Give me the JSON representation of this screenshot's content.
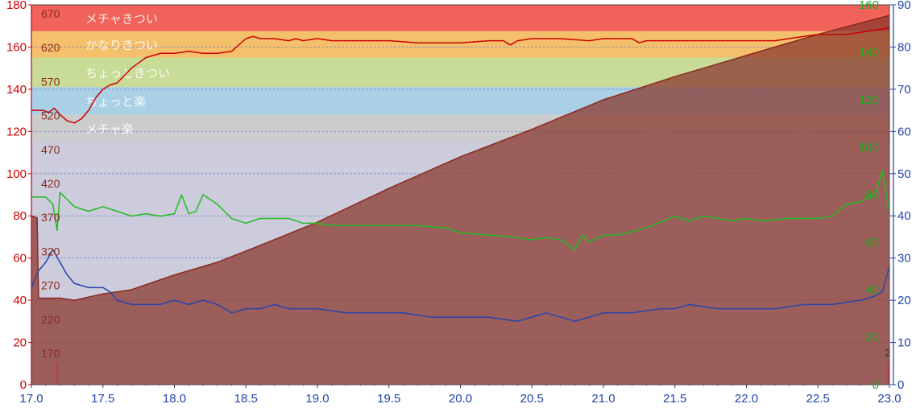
{
  "chart_data": {
    "type": "line",
    "x_ticks": [
      "17.0",
      "17.5",
      "18.0",
      "18.5",
      "19.0",
      "19.5",
      "20.0",
      "20.5",
      "21.0",
      "21.5",
      "22.0",
      "22.5",
      "23.0"
    ],
    "xlim": [
      17.0,
      23.0
    ],
    "axes": {
      "left_red": {
        "range": [
          0,
          180
        ],
        "ticks": [
          "0",
          "20",
          "40",
          "60",
          "80",
          "100",
          "120",
          "140",
          "160",
          "180"
        ],
        "color": "#cc0000"
      },
      "inner_dark": {
        "ticks": [
          "170",
          "220",
          "270",
          "320",
          "370",
          "420",
          "470",
          "520",
          "570",
          "620",
          "670"
        ],
        "color": "#8b2a1e"
      },
      "right_green": {
        "range": [
          0,
          160
        ],
        "ticks": [
          "0",
          "20",
          "40",
          "60",
          "80",
          "100",
          "120",
          "140",
          "160"
        ],
        "color": "#22aa22"
      },
      "right_blue": {
        "range": [
          0,
          90
        ],
        "ticks": [
          "0",
          "10",
          "20",
          "30",
          "40",
          "50",
          "60",
          "70",
          "80",
          "90"
        ],
        "color": "#2244aa"
      }
    },
    "zones": [
      {
        "label": "メチャきつい",
        "from": 167.5,
        "to": 180,
        "color": "#f0625a"
      },
      {
        "label": "かなりきつい",
        "from": 155,
        "to": 167.5,
        "color": "#f5c06c"
      },
      {
        "label": "ちょっときつい",
        "from": 141,
        "to": 155,
        "color": "#c8dc98"
      },
      {
        "label": "ちょっと楽",
        "from": 128,
        "to": 141,
        "color": "#aad0e6"
      },
      {
        "label": "メチャ楽",
        "from": 115,
        "to": 128,
        "color": "#cccccc"
      }
    ],
    "plot_background": "#ccccdc",
    "series": [
      {
        "axis": "left_red",
        "color": "#cc0000",
        "style": "line",
        "x": [
          17.0,
          17.08,
          17.12,
          17.16,
          17.2,
          17.25,
          17.3,
          17.35,
          17.4,
          17.45,
          17.5,
          17.55,
          17.6,
          17.7,
          17.8,
          17.9,
          18.0,
          18.1,
          18.2,
          18.3,
          18.4,
          18.5,
          18.55,
          18.6,
          18.7,
          18.8,
          18.85,
          18.9,
          19.0,
          19.1,
          19.3,
          19.5,
          19.7,
          19.9,
          20.0,
          20.2,
          20.3,
          20.35,
          20.4,
          20.5,
          20.7,
          20.9,
          21.0,
          21.2,
          21.25,
          21.3,
          21.5,
          21.7,
          21.9,
          22.0,
          22.2,
          22.4,
          22.5,
          22.7,
          22.9,
          23.0
        ],
        "y": [
          130,
          130,
          129,
          131,
          128,
          125,
          124,
          126,
          130,
          136,
          140,
          142,
          143,
          150,
          155,
          157,
          157,
          158,
          157,
          157,
          158,
          164,
          165,
          164,
          164,
          163,
          164,
          163,
          164,
          163,
          163,
          163,
          162,
          162,
          162,
          163,
          163,
          161,
          163,
          164,
          164,
          163,
          164,
          164,
          162,
          163,
          163,
          163,
          163,
          163,
          163,
          165,
          166,
          166,
          168,
          169
        ]
      },
      {
        "axis": "right_green",
        "color": "#22bb22",
        "style": "line",
        "x": [
          17.0,
          17.1,
          17.15,
          17.18,
          17.2,
          17.25,
          17.3,
          17.4,
          17.5,
          17.6,
          17.7,
          17.8,
          17.9,
          18.0,
          18.05,
          18.1,
          18.15,
          18.2,
          18.25,
          18.3,
          18.4,
          18.5,
          18.6,
          18.7,
          18.8,
          18.9,
          19.0,
          19.1,
          19.3,
          19.5,
          19.7,
          19.9,
          20.0,
          20.2,
          20.4,
          20.5,
          20.6,
          20.7,
          20.8,
          20.85,
          20.9,
          21.0,
          21.1,
          21.3,
          21.5,
          21.6,
          21.7,
          21.8,
          21.9,
          22.0,
          22.1,
          22.3,
          22.5,
          22.6,
          22.7,
          22.8,
          22.85,
          22.9,
          22.95,
          23.0
        ],
        "y": [
          79,
          79,
          76,
          65,
          81,
          78,
          75,
          73,
          75,
          73,
          71,
          72,
          71,
          72,
          80,
          72,
          73,
          80,
          78,
          76,
          70,
          68,
          70,
          70,
          70,
          68,
          68,
          67,
          67,
          67,
          67,
          66,
          64,
          63,
          62,
          61,
          62,
          61,
          57,
          63,
          60,
          63,
          63,
          66,
          71,
          69,
          71,
          70,
          69,
          70,
          69,
          70,
          70,
          71,
          76,
          77,
          79,
          80,
          90,
          73
        ]
      },
      {
        "axis": "right_blue",
        "color": "#2a44aa",
        "style": "line",
        "x": [
          17.0,
          17.05,
          17.1,
          17.15,
          17.2,
          17.25,
          17.3,
          17.4,
          17.5,
          17.55,
          17.6,
          17.7,
          17.8,
          17.9,
          18.0,
          18.1,
          18.2,
          18.3,
          18.4,
          18.5,
          18.6,
          18.7,
          18.8,
          19.0,
          19.2,
          19.4,
          19.6,
          19.8,
          20.0,
          20.2,
          20.4,
          20.5,
          20.6,
          20.8,
          20.9,
          21.0,
          21.2,
          21.4,
          21.5,
          21.6,
          21.8,
          22.0,
          22.2,
          22.4,
          22.6,
          22.8,
          22.9,
          22.95,
          23.0
        ],
        "y": [
          23,
          27,
          29,
          32,
          29,
          26,
          24,
          23,
          23,
          22,
          20,
          19,
          19,
          19,
          20,
          19,
          20,
          19,
          17,
          18,
          18,
          19,
          18,
          18,
          17,
          17,
          17,
          16,
          16,
          16,
          15,
          16,
          17,
          15,
          16,
          17,
          17,
          18,
          18,
          19,
          18,
          18,
          18,
          19,
          19,
          20,
          21,
          22,
          28
        ]
      },
      {
        "axis": "left_red",
        "color": "#8b2a1e",
        "style": "area",
        "fill": "#8b3a30",
        "fill_opacity": 0.75,
        "x": [
          17.0,
          17.04,
          17.05,
          17.2,
          17.3,
          17.5,
          17.7,
          18.0,
          18.3,
          18.6,
          19.0,
          19.5,
          20.0,
          20.5,
          21.0,
          21.5,
          22.0,
          22.5,
          23.0
        ],
        "y": [
          80,
          79,
          41,
          41,
          40,
          43,
          45,
          52,
          58,
          66,
          77,
          93,
          108,
          121,
          135,
          146,
          156,
          166,
          175
        ]
      }
    ],
    "markers": [
      {
        "x": 17.18,
        "label": ""
      },
      {
        "x": 22.99,
        "label": "2"
      }
    ]
  }
}
